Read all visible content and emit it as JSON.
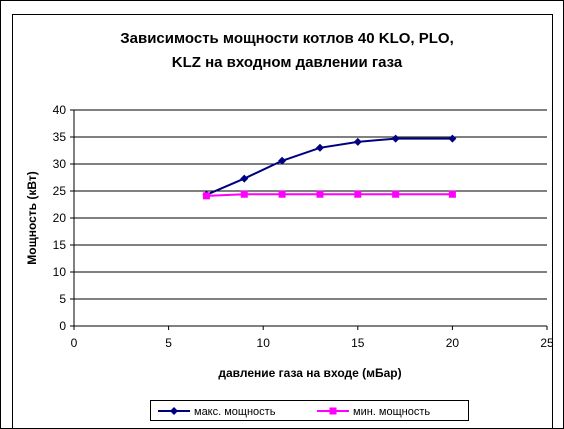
{
  "chart_data": {
    "type": "line",
    "title_lines": [
      "Зависимость мощности котлов 40 KLO, PLO,",
      "KLZ  на входном давлении газа"
    ],
    "xlabel": "давление газа на входе (мБар)",
    "ylabel": "Мощность (кВт)",
    "xlim": [
      0,
      25
    ],
    "ylim": [
      0,
      40
    ],
    "xticks": [
      "0",
      "5",
      "10",
      "15",
      "20",
      "25"
    ],
    "yticks": [
      "0",
      "5",
      "10",
      "15",
      "20",
      "25",
      "30",
      "35",
      "40"
    ],
    "grid": "horizontal",
    "legend_position": "bottom",
    "series": [
      {
        "name": "макс. мощность",
        "color": "#000080",
        "marker": "diamond",
        "points": [
          [
            7,
            24.3
          ],
          [
            9,
            27.3
          ],
          [
            11,
            30.6
          ],
          [
            13,
            33.0
          ],
          [
            15,
            34.1
          ],
          [
            17,
            34.7
          ],
          [
            20,
            34.7
          ]
        ]
      },
      {
        "name": "мин. мощность",
        "color": "#ff00ff",
        "marker": "square",
        "points": [
          [
            7,
            24.1
          ],
          [
            9,
            24.4
          ],
          [
            11,
            24.4
          ],
          [
            13,
            24.4
          ],
          [
            15,
            24.4
          ],
          [
            17,
            24.4
          ],
          [
            20,
            24.4
          ]
        ]
      }
    ]
  }
}
